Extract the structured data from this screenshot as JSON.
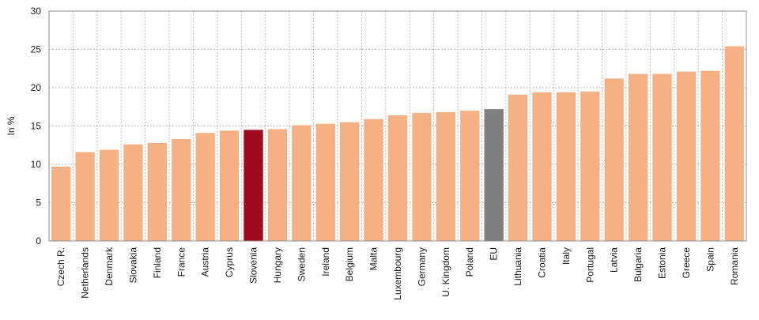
{
  "chart_data": {
    "type": "bar",
    "title": "",
    "xlabel": "",
    "ylabel": "In %",
    "ylim": [
      0,
      30
    ],
    "yticks": [
      0,
      5,
      10,
      15,
      20,
      25,
      30
    ],
    "grid": true,
    "categories": [
      "Czech R.",
      "Netherlands",
      "Denmark",
      "Slovakia",
      "Finland",
      "France",
      "Austria",
      "Cyprus",
      "Slovenia",
      "Hungary",
      "Sweden",
      "Ireland",
      "Belgium",
      "Malta",
      "Luxembourg",
      "Germany",
      "U. Kingdom",
      "Poland",
      "EU",
      "Lithuania",
      "Croatia",
      "Italy",
      "Portugal",
      "Latvia",
      "Bulgaria",
      "Estonia",
      "Greece",
      "Spain",
      "Romania"
    ],
    "values": [
      9.7,
      11.6,
      11.9,
      12.6,
      12.8,
      13.3,
      14.1,
      14.4,
      14.5,
      14.6,
      15.1,
      15.3,
      15.5,
      15.9,
      16.4,
      16.7,
      16.8,
      17.0,
      17.2,
      19.1,
      19.4,
      19.4,
      19.5,
      21.2,
      21.8,
      21.8,
      22.1,
      22.2,
      25.4
    ],
    "colors": {
      "default": "#f5b183",
      "highlight": "#9e0b1e",
      "eu": "#7f7f7f",
      "grid": "#a6a6a6",
      "frame": "#8c8c8c"
    },
    "highlight_categories": {
      "Slovenia": "highlight",
      "EU": "eu"
    }
  }
}
